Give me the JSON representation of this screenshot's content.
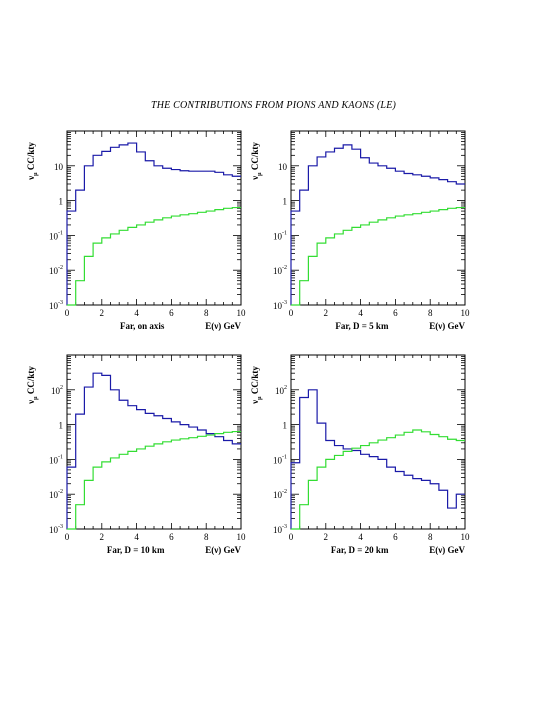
{
  "title": "THE CONTRIBUTIONS FROM PIONS AND KAONS (LE)",
  "colors": {
    "blue": "#1a1aa8",
    "green": "#33dd33",
    "axis": "#000000"
  },
  "chart_data": [
    {
      "type": "line",
      "step": true,
      "ylabel": "ν_μ CC/kty",
      "xlabel": "Far, on axis",
      "xunit": "E(ν) GeV",
      "xlim": [
        0,
        10
      ],
      "ylim": [
        0.001,
        100
      ],
      "ylog": true,
      "x_ticks": [
        "0",
        "2",
        "4",
        "6",
        "8",
        "10"
      ],
      "y_ticks": [
        {
          "base": "10",
          "exp": "-3"
        },
        {
          "base": "10",
          "exp": "-2"
        },
        {
          "base": "10",
          "exp": "-1"
        },
        {
          "base": "1",
          "exp": ""
        },
        {
          "base": "10",
          "exp": ""
        }
      ],
      "x_edges": [
        0,
        0.5,
        1,
        1.5,
        2,
        2.5,
        3,
        3.5,
        4,
        4.5,
        5,
        5.5,
        6,
        6.5,
        7,
        7.5,
        8,
        8.5,
        9,
        9.5,
        10
      ],
      "series": [
        {
          "color": "blue",
          "values": [
            0.5,
            2,
            10,
            20,
            26,
            34,
            40,
            45,
            25,
            14,
            10,
            8.5,
            7.8,
            7.2,
            7,
            7,
            7,
            6.5,
            5.5,
            5
          ]
        },
        {
          "color": "green",
          "values": [
            0.001,
            0.005,
            0.025,
            0.06,
            0.085,
            0.11,
            0.14,
            0.17,
            0.2,
            0.24,
            0.28,
            0.32,
            0.36,
            0.39,
            0.42,
            0.46,
            0.5,
            0.55,
            0.6,
            0.63
          ]
        }
      ]
    },
    {
      "type": "line",
      "step": true,
      "ylabel": "ν_μ CC/kty",
      "xlabel": "Far, D = 5 km",
      "xunit": "E(ν) GeV",
      "xlim": [
        0,
        10
      ],
      "ylim": [
        0.001,
        100
      ],
      "ylog": true,
      "x_ticks": [
        "0",
        "2",
        "4",
        "6",
        "8",
        "10"
      ],
      "y_ticks": [
        {
          "base": "10",
          "exp": "-3"
        },
        {
          "base": "10",
          "exp": "-2"
        },
        {
          "base": "10",
          "exp": "-1"
        },
        {
          "base": "1",
          "exp": ""
        },
        {
          "base": "10",
          "exp": ""
        }
      ],
      "x_edges": [
        0,
        0.5,
        1,
        1.5,
        2,
        2.5,
        3,
        3.5,
        4,
        4.5,
        5,
        5.5,
        6,
        6.5,
        7,
        7.5,
        8,
        8.5,
        9,
        9.5,
        10
      ],
      "series": [
        {
          "color": "blue",
          "values": [
            0.5,
            2,
            10,
            18,
            25,
            32,
            40,
            30,
            17,
            12,
            10,
            8.5,
            7,
            6,
            5.5,
            5,
            4.5,
            4,
            3.5,
            3
          ]
        },
        {
          "color": "green",
          "values": [
            0.001,
            0.005,
            0.025,
            0.06,
            0.085,
            0.11,
            0.14,
            0.17,
            0.2,
            0.24,
            0.28,
            0.32,
            0.36,
            0.39,
            0.42,
            0.46,
            0.5,
            0.55,
            0.6,
            0.63
          ]
        }
      ]
    },
    {
      "type": "line",
      "step": true,
      "ylabel": "ν_μ CC/kty",
      "xlabel": "Far, D = 10 km",
      "xunit": "E(ν) GeV",
      "xlim": [
        0,
        10
      ],
      "ylim": [
        0.001,
        100
      ],
      "ylog": true,
      "x_ticks": [
        "0",
        "2",
        "4",
        "6",
        "8",
        "10"
      ],
      "y_ticks": [
        {
          "base": "10",
          "exp": "-3"
        },
        {
          "base": "10",
          "exp": "-2"
        },
        {
          "base": "10",
          "exp": "-1"
        },
        {
          "base": "1",
          "exp": ""
        },
        {
          "base": "10",
          "exp": "2"
        }
      ],
      "x_edges": [
        0,
        0.5,
        1,
        1.5,
        2,
        2.5,
        3,
        3.5,
        4,
        4.5,
        5,
        5.5,
        6,
        6.5,
        7,
        7.5,
        8,
        8.5,
        9,
        9.5,
        10
      ],
      "series": [
        {
          "color": "blue",
          "values": [
            0.06,
            2,
            12,
            30,
            26,
            10,
            5,
            3.5,
            2.7,
            2.1,
            1.8,
            1.5,
            1.2,
            1,
            0.85,
            0.7,
            0.55,
            0.45,
            0.35,
            0.28
          ]
        },
        {
          "color": "green",
          "values": [
            0.001,
            0.005,
            0.025,
            0.06,
            0.085,
            0.11,
            0.14,
            0.17,
            0.2,
            0.24,
            0.28,
            0.32,
            0.36,
            0.39,
            0.42,
            0.46,
            0.5,
            0.55,
            0.6,
            0.63
          ]
        }
      ]
    },
    {
      "type": "line",
      "step": true,
      "ylabel": "ν_μ CC/kty",
      "xlabel": "Far, D = 20 km",
      "xunit": "E(ν) GeV",
      "xlim": [
        0,
        10
      ],
      "ylim": [
        0.001,
        100
      ],
      "ylog": true,
      "x_ticks": [
        "0",
        "2",
        "4",
        "6",
        "8",
        "10"
      ],
      "y_ticks": [
        {
          "base": "10",
          "exp": "-3"
        },
        {
          "base": "10",
          "exp": "-2"
        },
        {
          "base": "10",
          "exp": "-1"
        },
        {
          "base": "1",
          "exp": ""
        },
        {
          "base": "10",
          "exp": "2"
        }
      ],
      "x_edges": [
        0,
        0.5,
        1,
        1.5,
        2,
        2.5,
        3,
        3.5,
        4,
        4.5,
        5,
        5.5,
        6,
        6.5,
        7,
        7.5,
        8,
        8.5,
        9,
        9.5,
        10
      ],
      "series": [
        {
          "color": "blue",
          "values": [
            0.08,
            6,
            10,
            1.1,
            0.35,
            0.25,
            0.2,
            0.18,
            0.14,
            0.12,
            0.1,
            0.06,
            0.045,
            0.035,
            0.028,
            0.025,
            0.02,
            0.013,
            0.004,
            0.01
          ]
        },
        {
          "color": "green",
          "values": [
            0.001,
            0.005,
            0.025,
            0.06,
            0.1,
            0.13,
            0.17,
            0.21,
            0.25,
            0.3,
            0.36,
            0.42,
            0.5,
            0.6,
            0.7,
            0.62,
            0.52,
            0.45,
            0.38,
            0.35
          ]
        }
      ]
    }
  ]
}
